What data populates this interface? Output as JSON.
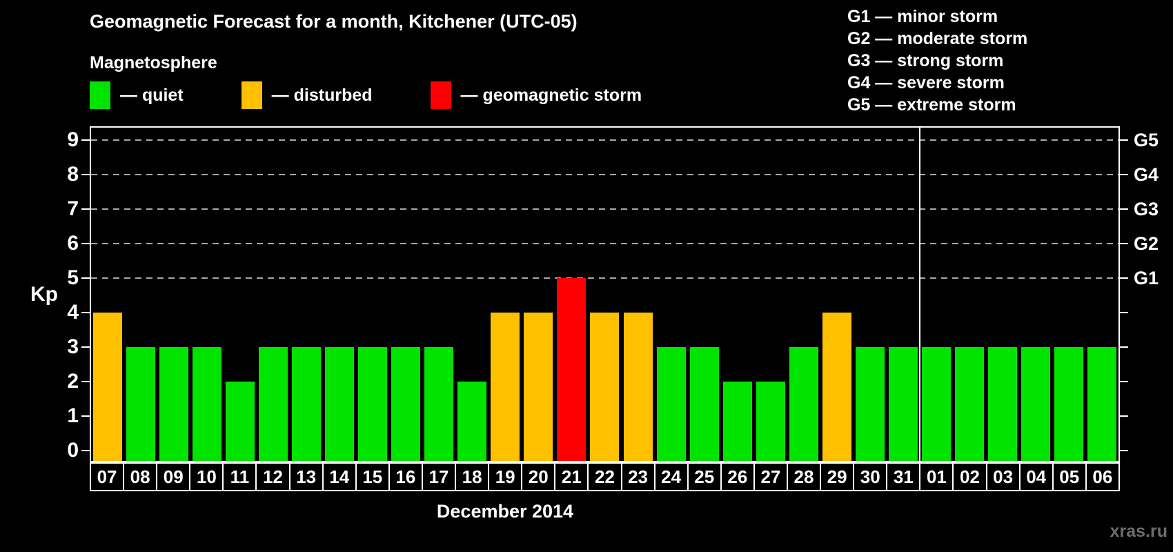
{
  "header": {
    "title": "Geomagnetic Forecast for a month, Kitchener (UTC-05)",
    "subtitle": "Magnetosphere"
  },
  "legend": {
    "items": [
      {
        "name": "quiet",
        "label": "— quiet",
        "color": "#00e400"
      },
      {
        "name": "disturbed",
        "label": "— disturbed",
        "color": "#ffc000"
      },
      {
        "name": "storm",
        "label": "— geomagnetic storm",
        "color": "#ff0000"
      }
    ]
  },
  "g_legend": {
    "items": [
      "G1 — minor storm",
      "G2 — moderate storm",
      "G3 — strong storm",
      "G4 — severe storm",
      "G5 — extreme storm"
    ]
  },
  "chart_data": {
    "type": "bar",
    "title": "Geomagnetic Forecast for a month, Kitchener (UTC-05)",
    "ylabel": "Kp",
    "xlabel": "December 2014",
    "ylim": [
      0,
      9
    ],
    "yticks": [
      0,
      1,
      2,
      3,
      4,
      5,
      6,
      7,
      8,
      9
    ],
    "gridlines_at": [
      5,
      6,
      7,
      8,
      9
    ],
    "right_axis_labels": [
      {
        "kp": 5,
        "label": "G1"
      },
      {
        "kp": 6,
        "label": "G2"
      },
      {
        "kp": 7,
        "label": "G3"
      },
      {
        "kp": 8,
        "label": "G4"
      },
      {
        "kp": 9,
        "label": "G5"
      }
    ],
    "categories": [
      "07",
      "08",
      "09",
      "10",
      "11",
      "12",
      "13",
      "14",
      "15",
      "16",
      "17",
      "18",
      "19",
      "20",
      "21",
      "22",
      "23",
      "24",
      "25",
      "26",
      "27",
      "28",
      "29",
      "30",
      "31",
      "01",
      "02",
      "03",
      "04",
      "05",
      "06"
    ],
    "values": [
      4,
      3,
      3,
      3,
      2,
      3,
      3,
      3,
      3,
      3,
      3,
      2,
      4,
      4,
      5,
      4,
      4,
      3,
      3,
      2,
      2,
      3,
      4,
      3,
      3,
      3,
      3,
      3,
      3,
      3,
      3
    ],
    "statuses": [
      "disturbed",
      "quiet",
      "quiet",
      "quiet",
      "quiet",
      "quiet",
      "quiet",
      "quiet",
      "quiet",
      "quiet",
      "quiet",
      "quiet",
      "disturbed",
      "disturbed",
      "storm",
      "disturbed",
      "disturbed",
      "quiet",
      "quiet",
      "quiet",
      "quiet",
      "quiet",
      "disturbed",
      "quiet",
      "quiet",
      "quiet",
      "quiet",
      "quiet",
      "quiet",
      "quiet",
      "quiet"
    ],
    "colors": {
      "quiet": "#00e400",
      "disturbed": "#ffc000",
      "storm": "#ff0000"
    },
    "month_separator_after_index": 24,
    "month_label": "December 2014",
    "legend_position": "top-left",
    "grid": "dashed-storm-levels-only"
  },
  "watermark": "xras.ru"
}
